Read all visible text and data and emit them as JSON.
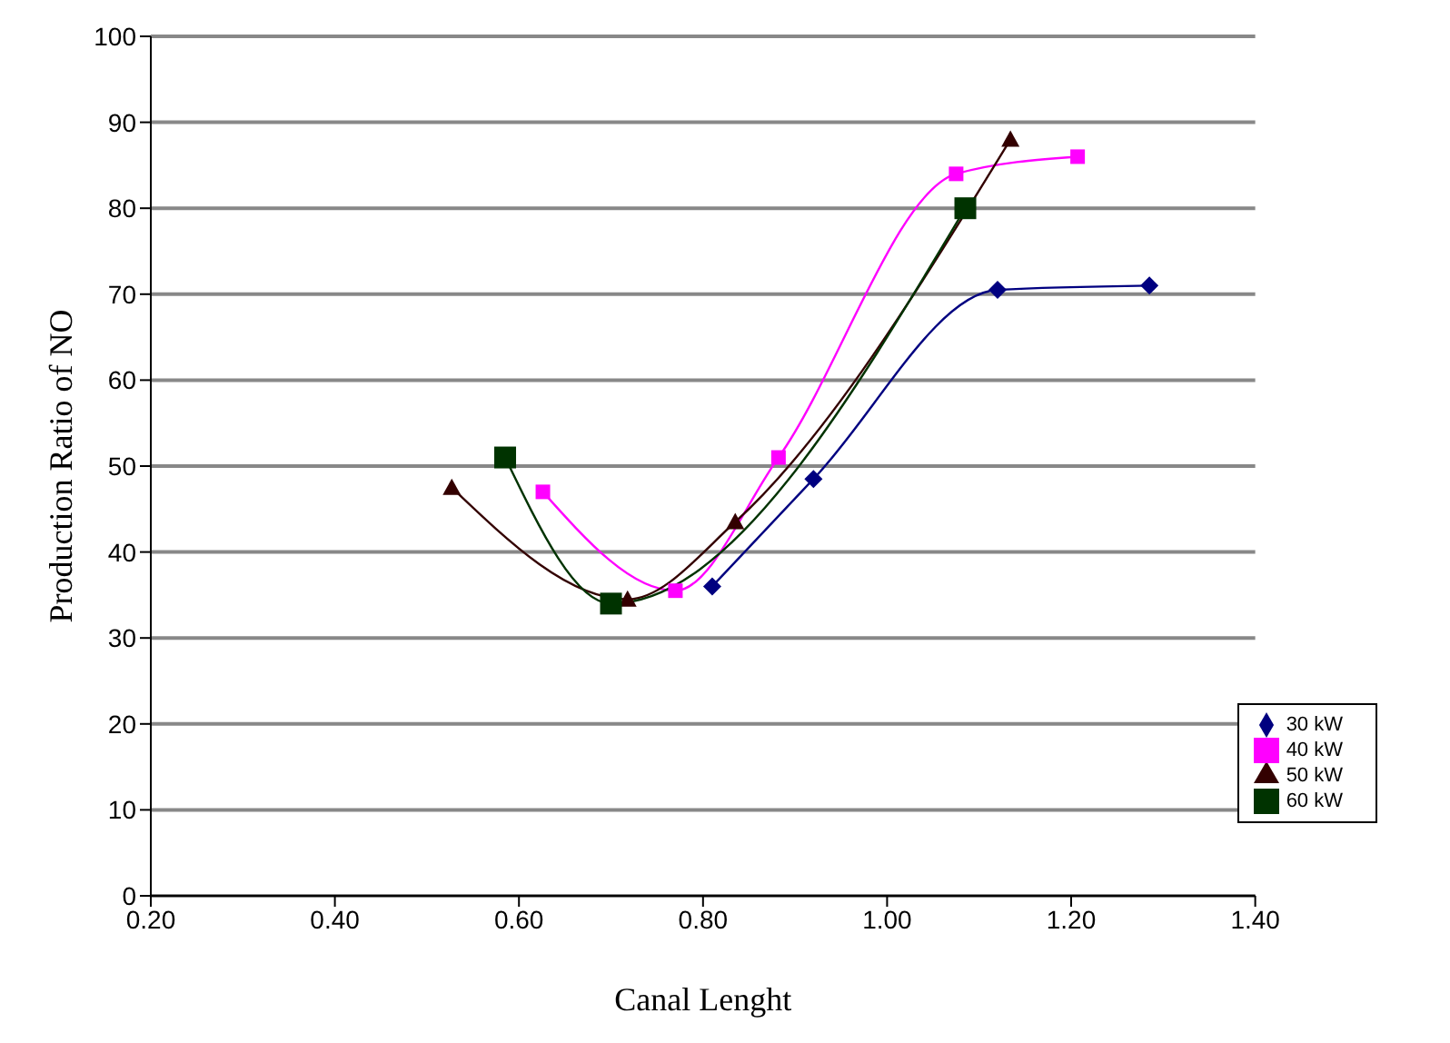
{
  "chart_data": {
    "type": "line",
    "xlabel": "Canal Lenght",
    "ylabel": "Production Ratio of NO",
    "xlim": [
      0.2,
      1.4
    ],
    "xticks": [
      {
        "value": 0.2,
        "label": "0.20"
      },
      {
        "value": 0.4,
        "label": "0.40"
      },
      {
        "value": 0.6,
        "label": "0.60"
      },
      {
        "value": 0.8,
        "label": "0.80"
      },
      {
        "value": 1.0,
        "label": "1.00"
      },
      {
        "value": 1.2,
        "label": "1.20"
      },
      {
        "value": 1.4,
        "label": "1.40"
      }
    ],
    "ylim": [
      0,
      100
    ],
    "yticks": [
      0,
      10,
      20,
      30,
      40,
      50,
      60,
      70,
      80,
      90,
      100
    ],
    "grid": "y",
    "legend": "bottom right",
    "series": [
      {
        "name": "30 kW",
        "color": "#000080",
        "marker": "diamond",
        "x": [
          0.81,
          0.92,
          1.12,
          1.285
        ],
        "values": [
          36,
          48.5,
          70.5,
          71
        ]
      },
      {
        "name": "40 kW",
        "color": "#ff00ff",
        "marker": "square",
        "x": [
          0.626,
          0.77,
          0.882,
          1.075,
          1.207
        ],
        "values": [
          47,
          35.5,
          51,
          84,
          86
        ]
      },
      {
        "name": "50 kW",
        "color": "#330000",
        "marker": "triangle",
        "x": [
          0.527,
          0.718,
          0.835,
          1.134
        ],
        "values": [
          47.5,
          34.5,
          43.5,
          88
        ]
      },
      {
        "name": "60 kW",
        "color": "#003300",
        "marker": "square",
        "x": [
          0.585,
          0.7,
          1.085
        ],
        "values": [
          51,
          34,
          80
        ]
      }
    ]
  }
}
